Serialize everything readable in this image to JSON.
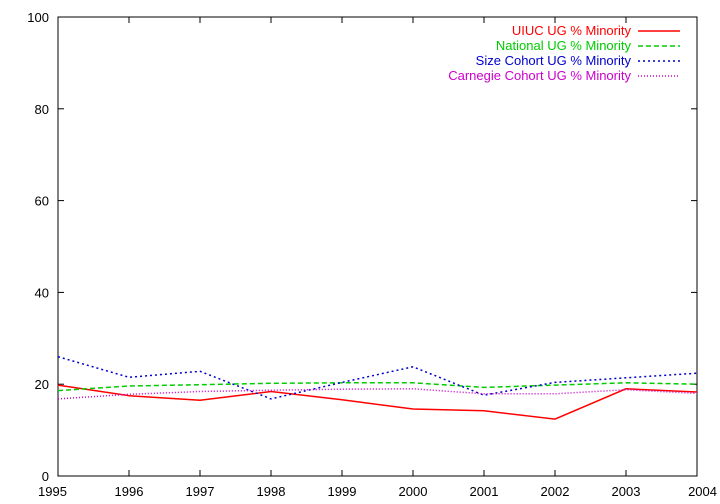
{
  "chart_data": {
    "type": "line",
    "title": "",
    "xlabel": "",
    "ylabel": "",
    "xlim": [
      1995,
      2004
    ],
    "ylim": [
      0,
      100
    ],
    "x_ticks": [
      1995,
      1996,
      1997,
      1998,
      1999,
      2000,
      2001,
      2002,
      2003,
      2004
    ],
    "y_ticks": [
      0,
      20,
      40,
      60,
      80,
      100
    ],
    "grid": false,
    "legend_position": "top-right",
    "x": [
      1995,
      1996,
      1997,
      1998,
      1999,
      2000,
      2001,
      2002,
      2003,
      2004
    ],
    "series": [
      {
        "name": "UIUC UG % Minority",
        "color": "#ff0000",
        "dash": "solid",
        "values": [
          19.8,
          17.5,
          16.5,
          18.4,
          16.6,
          14.6,
          14.2,
          12.4,
          19.0,
          18.3
        ]
      },
      {
        "name": "National UG % Minority",
        "color": "#00cc00",
        "dash": "dashed",
        "values": [
          18.6,
          19.6,
          19.9,
          20.2,
          20.3,
          20.3,
          19.3,
          19.8,
          20.3,
          20.0
        ]
      },
      {
        "name": "Size Cohort UG % Minority",
        "color": "#0000cc",
        "dash": "dotted",
        "values": [
          26.0,
          21.5,
          22.8,
          16.8,
          20.4,
          23.8,
          17.6,
          20.4,
          21.4,
          22.4
        ]
      },
      {
        "name": "Carnegie Cohort UG % Minority",
        "color": "#cc00cc",
        "dash": "fine-dotted",
        "values": [
          16.8,
          17.8,
          18.4,
          18.7,
          18.9,
          19.0,
          17.9,
          17.9,
          18.8,
          18.0
        ]
      }
    ]
  }
}
